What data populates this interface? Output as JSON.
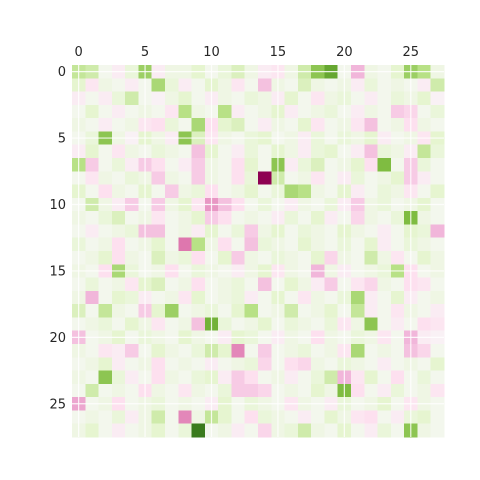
{
  "chart_data": {
    "type": "heatmap",
    "title": "",
    "xlabel": "",
    "ylabel": "",
    "colormap": "PiYG",
    "colormap_stops": [
      "#8e0152",
      "#c51b7d",
      "#de77ae",
      "#f1b6da",
      "#fde0ef",
      "#f7f7f7",
      "#e6f5d0",
      "#b8e186",
      "#7fbc41",
      "#4d9221",
      "#276419"
    ],
    "vmin": -1,
    "vmax": 1,
    "x_ticks": [
      0,
      5,
      10,
      15,
      20,
      25
    ],
    "y_ticks": [
      0,
      5,
      10,
      15,
      20,
      25
    ],
    "x_tick_labels": [
      "0",
      "5",
      "10",
      "15",
      "20",
      "25"
    ],
    "y_tick_labels": [
      "0",
      "5",
      "10",
      "15",
      "20",
      "25"
    ],
    "xlim": [
      -0.5,
      27.5
    ],
    "ylim": [
      -0.5,
      27.5
    ],
    "x_axis_position": "top",
    "grid": true,
    "matrix": [
      [
        0.35,
        0.3,
        0.05,
        -0.1,
        0.15,
        0.5,
        -0.1,
        0.1,
        0.1,
        0.2,
        0.05,
        0.15,
        0.25,
        0.1,
        -0.1,
        -0.15,
        0.1,
        0.3,
        0.55,
        0.7,
        0.05,
        -0.4,
        0.1,
        0.05,
        0.2,
        0.5,
        0.4,
        0.1
      ],
      [
        0.2,
        -0.15,
        0.1,
        0.05,
        -0.1,
        0.05,
        0.45,
        0.15,
        -0.1,
        0.05,
        0.2,
        0.1,
        -0.15,
        0.05,
        -0.35,
        0.1,
        0.05,
        0.25,
        0.1,
        0.05,
        0.1,
        -0.1,
        0.15,
        0.05,
        0.1,
        0.05,
        -0.1,
        0.3
      ],
      [
        -0.1,
        0.05,
        -0.1,
        0.15,
        0.3,
        0.05,
        -0.05,
        0.1,
        0.2,
        0.05,
        -0.1,
        0.1,
        0.05,
        0.15,
        0.1,
        -0.1,
        0.2,
        0.05,
        -0.15,
        0.1,
        0.15,
        0.05,
        -0.1,
        0.05,
        0.15,
        0.1,
        0.2,
        -0.05
      ],
      [
        0.05,
        0.2,
        0.05,
        -0.1,
        0.05,
        0.1,
        0.05,
        -0.15,
        0.4,
        0.1,
        0.05,
        0.4,
        -0.1,
        0.05,
        0.1,
        0.2,
        -0.1,
        0.05,
        0.1,
        0.15,
        0.05,
        -0.1,
        0.1,
        0.05,
        -0.3,
        -0.25,
        0.05,
        0.15
      ],
      [
        0.1,
        0.05,
        -0.1,
        0.05,
        0.1,
        -0.15,
        -0.2,
        0.15,
        0.05,
        0.45,
        -0.2,
        0.2,
        0.25,
        0.05,
        -0.1,
        0.1,
        0.05,
        0.2,
        -0.15,
        0.05,
        0.1,
        -0.15,
        -0.35,
        0.05,
        0.1,
        -0.2,
        0.1,
        0.05
      ],
      [
        0.05,
        0.15,
        0.55,
        0.1,
        -0.05,
        0.2,
        0.1,
        -0.1,
        0.55,
        0.25,
        -0.15,
        0.1,
        0.05,
        0.15,
        0.2,
        0.05,
        0.1,
        -0.1,
        0.15,
        0.05,
        0.15,
        0.1,
        0.2,
        -0.1,
        0.05,
        0.1,
        -0.15,
        0.2
      ],
      [
        -0.1,
        0.2,
        0.05,
        -0.15,
        0.1,
        0.05,
        0.15,
        0.1,
        0.05,
        -0.35,
        0.2,
        0.05,
        -0.1,
        0.15,
        0.05,
        0.2,
        0.1,
        -0.1,
        0.15,
        0.2,
        0.05,
        -0.1,
        -0.35,
        0.15,
        0.1,
        -0.1,
        0.35,
        0.15
      ],
      [
        0.4,
        -0.3,
        0.05,
        0.15,
        -0.1,
        -0.3,
        -0.2,
        0.05,
        -0.1,
        -0.3,
        0.1,
        0.05,
        -0.2,
        0.2,
        0.05,
        0.55,
        -0.1,
        0.15,
        0.25,
        0.05,
        0.1,
        0.2,
        -0.2,
        0.6,
        0.05,
        -0.3,
        0.15,
        0.05
      ],
      [
        0.05,
        -0.15,
        0.1,
        0.05,
        0.15,
        0.1,
        -0.3,
        0.1,
        0.05,
        -0.3,
        0.1,
        0.05,
        -0.2,
        0.15,
        -1.0,
        0.3,
        0.05,
        0.1,
        -0.15,
        0.05,
        -0.1,
        0.15,
        0.05,
        0.1,
        0.2,
        -0.3,
        -0.1,
        0.05
      ],
      [
        0.2,
        0.05,
        -0.2,
        0.1,
        0.05,
        0.2,
        0.05,
        -0.3,
        0.1,
        0.15,
        -0.2,
        0.05,
        0.1,
        0.2,
        0.05,
        0.15,
        0.45,
        0.4,
        0.1,
        0.05,
        0.2,
        -0.1,
        0.05,
        0.15,
        0.1,
        -0.15,
        0.05,
        0.2
      ],
      [
        0.05,
        0.3,
        0.1,
        -0.1,
        -0.3,
        0.05,
        -0.3,
        0.1,
        0.2,
        -0.15,
        -0.5,
        -0.35,
        -0.2,
        0.05,
        0.15,
        0.05,
        -0.1,
        0.1,
        0.05,
        0.15,
        -0.1,
        -0.3,
        0.1,
        0.15,
        0.05,
        0.1,
        0.2,
        0.05
      ],
      [
        0.1,
        0.05,
        0.15,
        0.25,
        0.05,
        0.1,
        -0.15,
        0.05,
        0.1,
        0.2,
        -0.3,
        -0.2,
        0.05,
        0.1,
        0.05,
        -0.1,
        0.15,
        0.05,
        0.2,
        -0.1,
        0.05,
        -0.25,
        0.1,
        0.05,
        0.15,
        0.6,
        0.1,
        0.05
      ],
      [
        0.05,
        -0.1,
        0.05,
        0.1,
        0.15,
        -0.35,
        -0.35,
        0.05,
        0.1,
        -0.1,
        0.2,
        0.05,
        0.15,
        -0.3,
        0.1,
        0.2,
        0.05,
        0.15,
        0.1,
        0.05,
        0.2,
        0.1,
        0.05,
        -0.1,
        0.05,
        0.2,
        0.15,
        -0.4
      ],
      [
        0.15,
        0.05,
        0.1,
        -0.2,
        0.05,
        0.1,
        0.2,
        0.05,
        -0.6,
        0.4,
        0.1,
        -0.2,
        0.05,
        -0.35,
        0.15,
        0.1,
        0.05,
        0.2,
        0.1,
        0.05,
        0.15,
        0.05,
        0.2,
        -0.1,
        0.05,
        0.15,
        0.1,
        0.05
      ],
      [
        0.05,
        0.1,
        0.2,
        -0.2,
        0.1,
        0.05,
        0.25,
        0.1,
        0.15,
        -0.2,
        0.05,
        0.2,
        -0.3,
        0.1,
        0.05,
        0.15,
        0.1,
        0.05,
        0.2,
        -0.25,
        0.1,
        0.05,
        0.3,
        0.1,
        -0.15,
        0.05,
        0.2,
        0.1
      ],
      [
        0.1,
        0.05,
        -0.2,
        0.45,
        0.15,
        0.05,
        0.1,
        -0.2,
        0.05,
        0.15,
        0.1,
        0.05,
        -0.1,
        0.1,
        0.2,
        -0.15,
        0.1,
        0.05,
        -0.4,
        0.1,
        -0.1,
        0.05,
        0.1,
        0.15,
        0.4,
        -0.2,
        0.05,
        0.1
      ],
      [
        0.05,
        0.15,
        0.05,
        0.1,
        -0.15,
        0.2,
        0.25,
        0.05,
        0.1,
        -0.2,
        0.05,
        0.1,
        0.15,
        0.05,
        -0.35,
        0.05,
        0.2,
        0.1,
        -0.1,
        -0.3,
        0.05,
        -0.15,
        -0.25,
        0.1,
        0.05,
        -0.2,
        -0.15,
        0.05
      ],
      [
        0.1,
        -0.4,
        0.05,
        0.2,
        0.15,
        -0.1,
        0.05,
        0.1,
        -0.15,
        0.2,
        0.05,
        0.1,
        0.15,
        -0.1,
        0.05,
        0.2,
        0.05,
        -0.15,
        0.1,
        0.05,
        0.15,
        0.45,
        -0.1,
        0.05,
        0.2,
        -0.1,
        0.05,
        0.1
      ],
      [
        0.25,
        0.05,
        0.35,
        0.1,
        0.05,
        -0.3,
        0.2,
        0.5,
        0.05,
        0.1,
        0.15,
        0.05,
        0.2,
        0.4,
        0.05,
        0.1,
        0.3,
        0.05,
        0.1,
        0.2,
        0.05,
        0.35,
        -0.1,
        0.05,
        -0.15,
        0.1,
        0.05,
        -0.1
      ],
      [
        0.05,
        0.1,
        0.15,
        0.05,
        0.2,
        0.1,
        -0.15,
        0.05,
        0.1,
        -0.35,
        0.65,
        0.15,
        0.05,
        0.1,
        0.2,
        0.05,
        0.15,
        0.1,
        0.05,
        0.15,
        -0.15,
        0.1,
        0.55,
        0.05,
        -0.1,
        0.05,
        -0.2,
        -0.15
      ],
      [
        -0.35,
        0.05,
        0.1,
        0.2,
        0.05,
        0.15,
        0.1,
        0.05,
        0.2,
        0.1,
        0.05,
        -0.1,
        0.2,
        0.15,
        0.05,
        -0.1,
        0.1,
        0.05,
        -0.2,
        0.1,
        0.05,
        0.15,
        0.1,
        -0.15,
        0.05,
        -0.4,
        -0.1,
        -0.05
      ],
      [
        0.1,
        0.05,
        -0.15,
        -0.1,
        -0.3,
        0.05,
        0.2,
        0.1,
        0.05,
        0.15,
        0.3,
        0.2,
        -0.55,
        0.05,
        -0.3,
        0.05,
        0.1,
        0.15,
        0.05,
        0.1,
        -0.15,
        0.45,
        0.05,
        0.1,
        0.05,
        -0.35,
        -0.25,
        0.05
      ],
      [
        0.05,
        0.1,
        0.2,
        -0.1,
        0.05,
        0.1,
        -0.2,
        0.05,
        0.1,
        0.05,
        -0.1,
        0.05,
        0.1,
        0.15,
        -0.25,
        0.05,
        -0.2,
        -0.25,
        0.1,
        0.05,
        0.15,
        0.1,
        0.05,
        -0.1,
        0.05,
        0.1,
        0.05,
        0.2
      ],
      [
        0.1,
        0.05,
        0.55,
        0.15,
        -0.1,
        0.05,
        -0.2,
        0.1,
        0.05,
        0.15,
        0.2,
        -0.1,
        -0.3,
        -0.2,
        0.05,
        0.1,
        -0.1,
        0.05,
        0.15,
        0.3,
        -0.4,
        -0.15,
        0.2,
        0.05,
        -0.2,
        0.05,
        0.15,
        0.05
      ],
      [
        0.05,
        0.3,
        0.05,
        0.1,
        0.05,
        -0.2,
        0.1,
        0.05,
        -0.15,
        0.1,
        0.05,
        0.15,
        -0.3,
        -0.3,
        -0.25,
        0.05,
        0.1,
        0.05,
        0.2,
        0.1,
        0.6,
        -0.2,
        0.05,
        -0.1,
        0.15,
        0.05,
        0.1,
        -0.15
      ],
      [
        -0.45,
        0.05,
        0.1,
        -0.2,
        0.05,
        0.1,
        0.15,
        0.05,
        0.1,
        0.05,
        -0.1,
        0.2,
        0.05,
        0.15,
        0.1,
        0.05,
        -0.15,
        0.1,
        0.05,
        -0.1,
        0.15,
        0.05,
        0.1,
        0.2,
        0.05,
        -0.15,
        0.1,
        0.05
      ],
      [
        0.05,
        0.1,
        0.05,
        0.15,
        -0.1,
        0.1,
        0.3,
        0.05,
        -0.55,
        0.1,
        0.35,
        0.2,
        0.05,
        -0.2,
        0.15,
        0.1,
        0.05,
        -0.1,
        0.05,
        0.2,
        0.1,
        -0.15,
        -0.2,
        0.05,
        -0.1,
        0.15,
        0.2,
        0.05
      ],
      [
        0.1,
        0.2,
        0.05,
        -0.1,
        0.05,
        0.1,
        0.2,
        0.05,
        0.15,
        0.9,
        0.05,
        0.1,
        -0.1,
        0.05,
        -0.25,
        0.1,
        0.15,
        0.3,
        0.1,
        0.05,
        0.2,
        0.05,
        -0.1,
        0.15,
        0.05,
        0.55,
        0.1,
        0.05
      ]
    ]
  }
}
